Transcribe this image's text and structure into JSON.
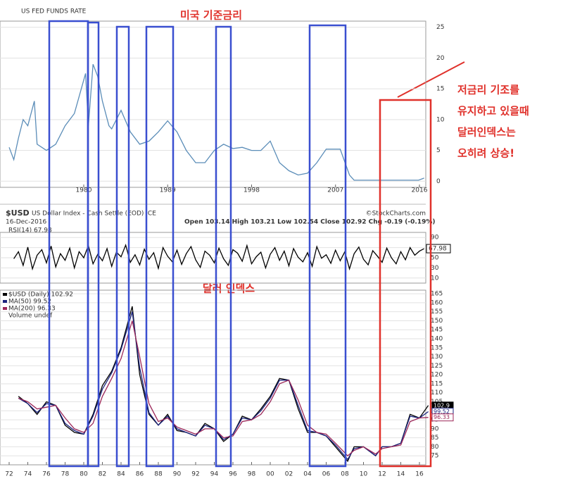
{
  "chart_data": [
    {
      "type": "line",
      "title": "US FED FUNDS RATE",
      "annotation": "미국 기준금리",
      "color": "#5b8db8",
      "grid": true,
      "x": [
        1972,
        1972.5,
        1973,
        1973.5,
        1974,
        1974.7,
        1975,
        1976,
        1977,
        1978,
        1979,
        1980.2,
        1980.5,
        1981,
        1981.5,
        1982,
        1982.7,
        1983,
        1984,
        1985,
        1986,
        1987,
        1988,
        1989,
        1990,
        1991,
        1992,
        1993,
        1994,
        1995,
        1996,
        1997,
        1998,
        1999,
        2000,
        2001,
        2002,
        2003,
        2004,
        2005,
        2006,
        2007.5,
        2008.5,
        2009,
        2015.9,
        2016.5
      ],
      "values": [
        5.5,
        3.5,
        7,
        10,
        9,
        13,
        6,
        5,
        6,
        9,
        11,
        17.5,
        9,
        19,
        17,
        13,
        9,
        8.5,
        11.5,
        8,
        6,
        6.5,
        8,
        9.8,
        8,
        5,
        3,
        3,
        5,
        6,
        5.3,
        5.5,
        5,
        5,
        6.5,
        3,
        1.7,
        1,
        1.3,
        3,
        5.2,
        5.2,
        1,
        0.15,
        0.15,
        0.5
      ],
      "xlim": [
        1971.02,
        2016.68
      ],
      "ylim": [
        -1,
        26
      ],
      "xticks": [
        1980,
        1989,
        1998,
        2007,
        2016
      ],
      "yticks": [
        0,
        5,
        10,
        15,
        20,
        25
      ]
    },
    {
      "type": "line",
      "title": "RSI(14) 67.98",
      "value_label": "67.98",
      "color": "#000000",
      "grid": true,
      "x": [
        1972.5,
        1973,
        1973.5,
        1974,
        1974.5,
        1975,
        1975.5,
        1976,
        1976.5,
        1977,
        1977.5,
        1978,
        1978.5,
        1979,
        1979.5,
        1980,
        1980.5,
        1981,
        1981.5,
        1982,
        1982.5,
        1983,
        1983.5,
        1984,
        1984.5,
        1985,
        1985.5,
        1986,
        1986.5,
        1987,
        1987.5,
        1988,
        1988.5,
        1989,
        1989.5,
        1990,
        1990.5,
        1991,
        1991.5,
        1992,
        1992.5,
        1993,
        1993.5,
        1994,
        1994.5,
        1995,
        1995.5,
        1996,
        1996.5,
        1997,
        1997.5,
        1998,
        1998.5,
        1999,
        1999.5,
        2000,
        2000.5,
        2001,
        2001.5,
        2002,
        2002.5,
        2003,
        2003.5,
        2004,
        2004.5,
        2005,
        2005.5,
        2006,
        2006.5,
        2007,
        2007.5,
        2008,
        2008.5,
        2009,
        2009.5,
        2010,
        2010.5,
        2011,
        2011.5,
        2012,
        2012.5,
        2013,
        2013.5,
        2014,
        2014.5,
        2015,
        2015.5,
        2016,
        2016.5
      ],
      "values": [
        48,
        62,
        35,
        71,
        28,
        55,
        66,
        40,
        73,
        32,
        58,
        45,
        69,
        30,
        62,
        50,
        74,
        38,
        57,
        44,
        68,
        33,
        61,
        52,
        75,
        41,
        56,
        36,
        67,
        47,
        60,
        29,
        70,
        53,
        42,
        65,
        37,
        58,
        72,
        46,
        31,
        63,
        55,
        40,
        69,
        48,
        35,
        66,
        59,
        43,
        74,
        38,
        52,
        61,
        30,
        57,
        70,
        45,
        63,
        34,
        68,
        51,
        42,
        60,
        33,
        72,
        49,
        56,
        39,
        65,
        44,
        62,
        28,
        58,
        71,
        47,
        36,
        64,
        53,
        41,
        69,
        50,
        38,
        62,
        46,
        70,
        55,
        63,
        67.98
      ],
      "xlim": [
        1971.02,
        2016.68
      ],
      "ylim": [
        0,
        100
      ],
      "yticks": [
        10,
        30,
        50,
        70,
        90
      ]
    },
    {
      "type": "line",
      "title": "$USD",
      "subtitle": "US Dollar Index - Cash Settle (EOD) ICE",
      "date": "16-Dec-2016",
      "quote": "Open 103.14 High 103.21 Low 102.54 Close 102.92 Chg -0.19 (-0.19%)",
      "source": "©StockCharts.com",
      "annotation": "달러 인덱스",
      "legend_note": "Volume undef",
      "grid": true,
      "x": [
        1973,
        1974,
        1975,
        1976,
        1977,
        1978,
        1979,
        1980,
        1981,
        1982,
        1983,
        1984,
        1985.2,
        1986,
        1987,
        1988,
        1989,
        1990,
        1991,
        1992,
        1993,
        1994,
        1995,
        1996,
        1997,
        1998,
        1999,
        2000,
        2001,
        2002,
        2003,
        2004,
        2005,
        2006,
        2007,
        2008.3,
        2009,
        2010,
        2011.3,
        2012,
        2013,
        2014,
        2015,
        2016,
        2016.95
      ],
      "series": [
        {
          "name": "$USD (Daily) 102.92",
          "end_label": "102.9",
          "color": "#000000",
          "values": [
            108,
            104,
            98,
            105,
            103,
            92,
            88,
            87,
            98,
            114,
            122,
            135,
            158,
            120,
            98,
            92,
            98,
            89,
            88,
            86,
            93,
            90,
            83,
            87,
            97,
            95,
            101,
            108,
            118,
            117,
            101,
            88,
            88,
            86,
            80,
            72,
            80,
            80,
            75,
            80,
            80,
            82,
            98,
            96,
            102.92
          ]
        },
        {
          "name": "MA(50) 99.52",
          "end_label": "99.52",
          "color": "#1a237e",
          "values": [
            107,
            104,
            99,
            104,
            103,
            93,
            89,
            87,
            97,
            112,
            121,
            134,
            155,
            124,
            99,
            92,
            97,
            90,
            88,
            86,
            92,
            90,
            84,
            87,
            96,
            95,
            100,
            107,
            117,
            117,
            103,
            89,
            88,
            86,
            81,
            73,
            79,
            80,
            75,
            80,
            80,
            82,
            97,
            96,
            99.52
          ]
        },
        {
          "name": "MA(200) 96.33",
          "end_label": "96.33",
          "color": "#9c2759",
          "values": [
            107,
            105,
            101,
            102,
            103,
            96,
            90,
            88,
            93,
            108,
            118,
            129,
            150,
            130,
            104,
            94,
            96,
            91,
            89,
            87,
            90,
            90,
            85,
            86,
            94,
            95,
            98,
            105,
            115,
            117,
            106,
            92,
            88,
            87,
            82,
            75,
            78,
            80,
            76,
            79,
            80,
            81,
            94,
            96,
            96.33
          ]
        }
      ],
      "xlim": [
        1971.02,
        2016.68
      ],
      "ylim": [
        70,
        167
      ],
      "xticks": [
        {
          "value": 1972,
          "label": "72"
        },
        {
          "value": 1974,
          "label": "74"
        },
        {
          "value": 1976,
          "label": "76"
        },
        {
          "value": 1978,
          "label": "78"
        },
        {
          "value": 1980,
          "label": "80"
        },
        {
          "value": 1982,
          "label": "82"
        },
        {
          "value": 1984,
          "label": "84"
        },
        {
          "value": 1986,
          "label": "86"
        },
        {
          "value": 1988,
          "label": "88"
        },
        {
          "value": 1990,
          "label": "90"
        },
        {
          "value": 1992,
          "label": "92"
        },
        {
          "value": 1994,
          "label": "94"
        },
        {
          "value": 1996,
          "label": "96"
        },
        {
          "value": 1998,
          "label": "98"
        },
        {
          "value": 2000,
          "label": "00"
        },
        {
          "value": 2002,
          "label": "02"
        },
        {
          "value": 2004,
          "label": "04"
        },
        {
          "value": 2006,
          "label": "06"
        },
        {
          "value": 2008,
          "label": "08"
        },
        {
          "value": 2010,
          "label": "10"
        },
        {
          "value": 2012,
          "label": "12"
        },
        {
          "value": 2014,
          "label": "14"
        },
        {
          "value": 2016,
          "label": "16"
        }
      ],
      "yticks": [
        75,
        80,
        85,
        90,
        95,
        100,
        105,
        110,
        115,
        120,
        125,
        130,
        135,
        140,
        145,
        150,
        155,
        160,
        165
      ]
    }
  ],
  "note": {
    "lines": [
      "저금리 기조를",
      "유지하고 있을때",
      "달러인덱스는",
      "오히려 상승!"
    ]
  }
}
